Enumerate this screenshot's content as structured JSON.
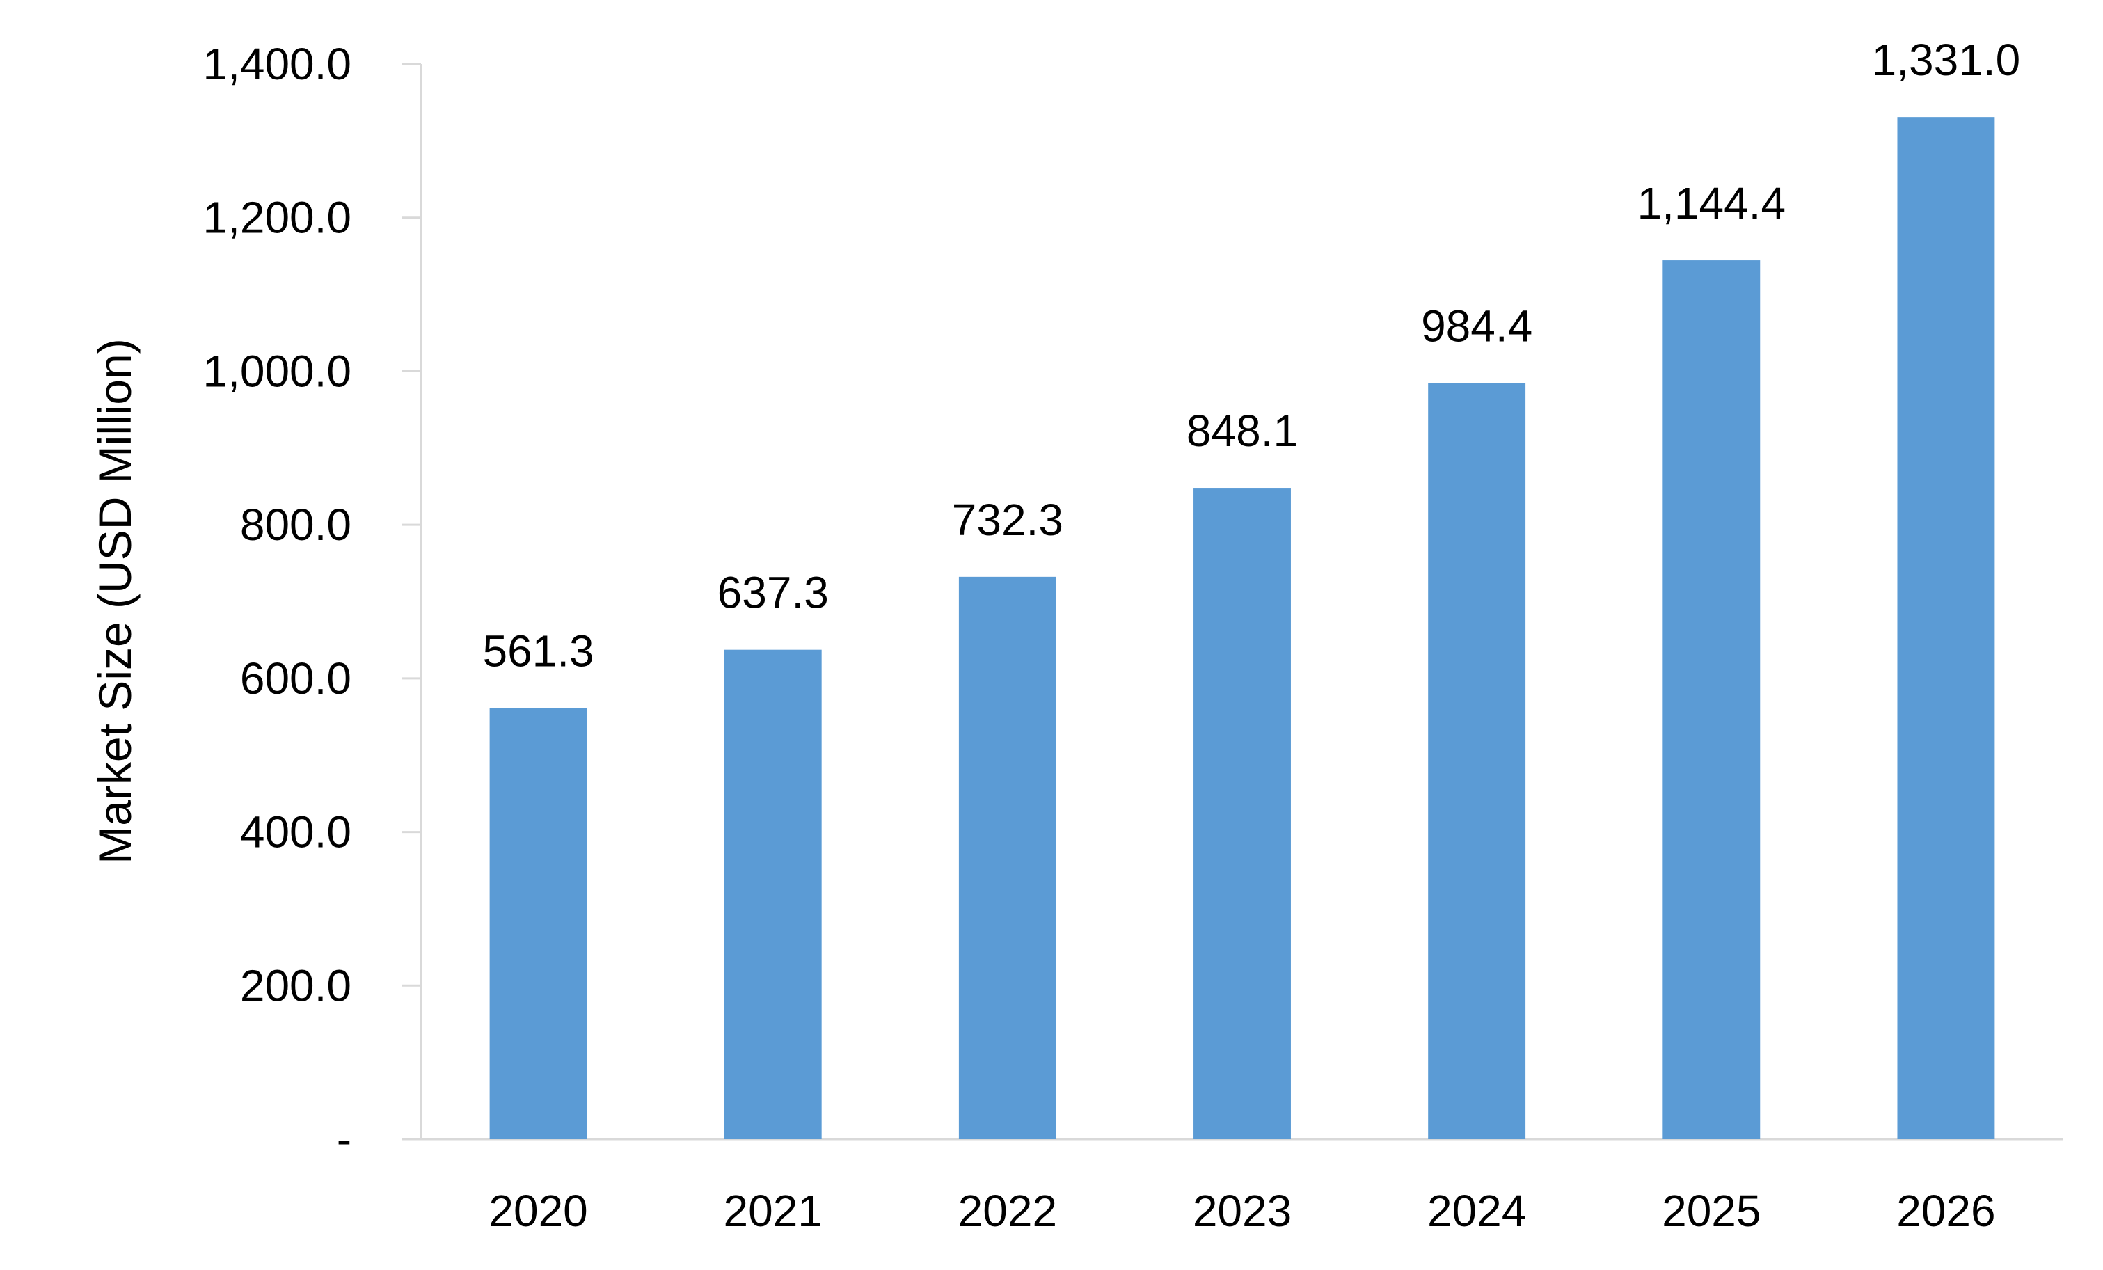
{
  "chart_data": {
    "type": "bar",
    "title": "",
    "xlabel": "",
    "ylabel": "Market Size (USD Million)",
    "categories": [
      "2020",
      "2021",
      "2022",
      "2023",
      "2024",
      "2025",
      "2026"
    ],
    "values": [
      561.3,
      637.3,
      732.3,
      848.1,
      984.4,
      1144.4,
      1331.0
    ],
    "value_labels": [
      "561.3",
      "637.3",
      "732.3",
      "848.1",
      "984.4",
      "1,144.4",
      "1,331.0"
    ],
    "ylim": [
      0,
      1400
    ],
    "yticks": [
      0,
      200,
      400,
      600,
      800,
      1000,
      1200,
      1400
    ],
    "ytick_labels": [
      "-",
      "200.0",
      "400.0",
      "600.0",
      "800.0",
      "1,000.0",
      "1,200.0",
      "1,400.0"
    ],
    "grid": false,
    "legend": "none",
    "bar_color": "#5b9bd5"
  }
}
